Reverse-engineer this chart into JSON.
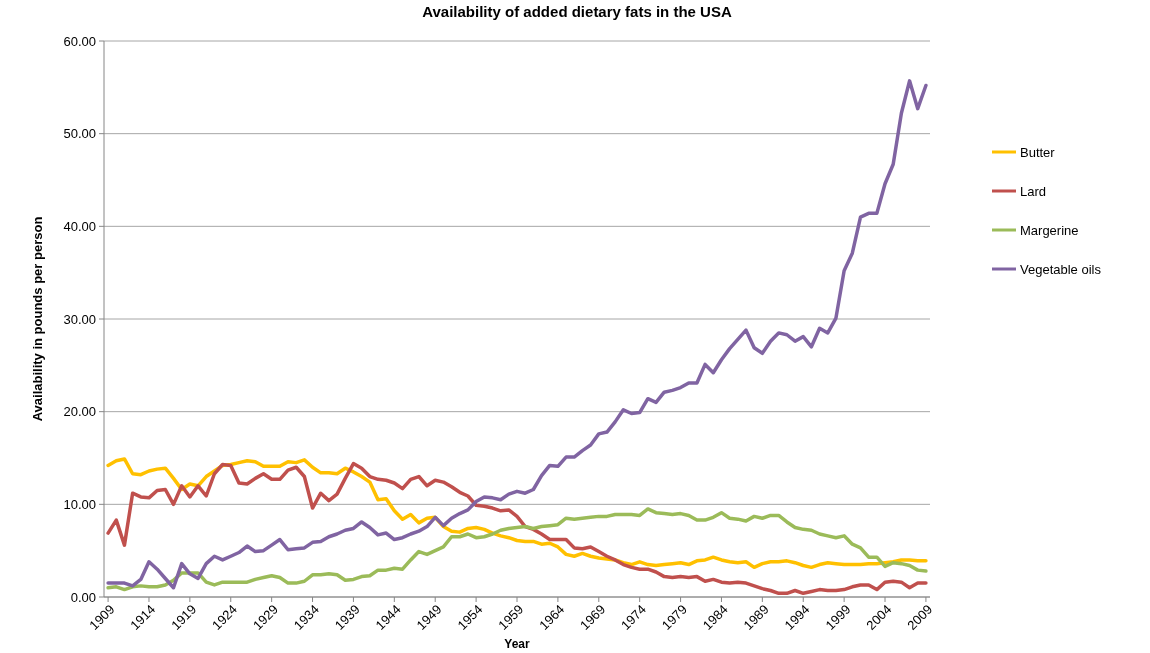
{
  "chart_data": {
    "type": "line",
    "title": "Availability of added dietary fats in the USA",
    "xlabel": "Year",
    "ylabel": "Availability in pounds per person",
    "x": [
      1909,
      1910,
      1911,
      1912,
      1913,
      1914,
      1915,
      1916,
      1917,
      1918,
      1919,
      1920,
      1921,
      1922,
      1923,
      1924,
      1925,
      1926,
      1927,
      1928,
      1929,
      1930,
      1931,
      1932,
      1933,
      1934,
      1935,
      1936,
      1937,
      1938,
      1939,
      1940,
      1941,
      1942,
      1943,
      1944,
      1945,
      1946,
      1947,
      1948,
      1949,
      1950,
      1951,
      1952,
      1953,
      1954,
      1955,
      1956,
      1957,
      1958,
      1959,
      1960,
      1961,
      1962,
      1963,
      1964,
      1965,
      1966,
      1967,
      1968,
      1969,
      1970,
      1971,
      1972,
      1973,
      1974,
      1975,
      1976,
      1977,
      1978,
      1979,
      1980,
      1981,
      1982,
      1983,
      1984,
      1985,
      1986,
      1987,
      1988,
      1989,
      1990,
      1991,
      1992,
      1993,
      1994,
      1995,
      1996,
      1997,
      1998,
      1999,
      2000,
      2001,
      2002,
      2003,
      2004,
      2005,
      2006,
      2007,
      2008,
      2009
    ],
    "xlim": [
      1908.5,
      2009.5
    ],
    "xticks": [
      1909,
      1914,
      1919,
      1924,
      1929,
      1934,
      1939,
      1944,
      1949,
      1954,
      1959,
      1964,
      1969,
      1974,
      1979,
      1984,
      1989,
      1994,
      1999,
      2004,
      2009
    ],
    "ylim": [
      0,
      60
    ],
    "yticks": [
      {
        "value": 0,
        "label": "0.00"
      },
      {
        "value": 10,
        "label": "10.00"
      },
      {
        "value": 20,
        "label": "20.00"
      },
      {
        "value": 30,
        "label": "30.00"
      },
      {
        "value": 40,
        "label": "40.00"
      },
      {
        "value": 50,
        "label": "50.00"
      },
      {
        "value": 60,
        "label": "60.00"
      }
    ],
    "grid": "y",
    "legend": "right",
    "marker": "none",
    "line_style": "solid",
    "series": [
      {
        "name": "Butter",
        "color": "#ffc000",
        "values": [
          14.2,
          14.7,
          14.9,
          13.3,
          13.2,
          13.6,
          13.8,
          13.9,
          12.8,
          11.6,
          12.2,
          12.0,
          13.0,
          13.6,
          14.2,
          14.3,
          14.5,
          14.7,
          14.6,
          14.1,
          14.1,
          14.1,
          14.6,
          14.5,
          14.8,
          14.0,
          13.4,
          13.4,
          13.3,
          13.9,
          13.5,
          13.0,
          12.4,
          10.5,
          10.6,
          9.3,
          8.4,
          8.9,
          8.0,
          8.5,
          8.6,
          7.6,
          7.1,
          7.0,
          7.4,
          7.5,
          7.3,
          6.9,
          6.6,
          6.4,
          6.1,
          6.0,
          6.0,
          5.7,
          5.8,
          5.4,
          4.6,
          4.4,
          4.7,
          4.4,
          4.2,
          4.1,
          4.0,
          3.7,
          3.5,
          3.8,
          3.5,
          3.4,
          3.5,
          3.6,
          3.7,
          3.5,
          3.9,
          4.0,
          4.3,
          4.0,
          3.8,
          3.7,
          3.8,
          3.2,
          3.6,
          3.8,
          3.8,
          3.9,
          3.7,
          3.4,
          3.2,
          3.5,
          3.7,
          3.6,
          3.5,
          3.5,
          3.5,
          3.6,
          3.6,
          3.7,
          3.8,
          4.0,
          4.0,
          3.9,
          3.9
        ]
      },
      {
        "name": "Lard",
        "color": "#c0504d",
        "values": [
          6.9,
          8.3,
          5.6,
          11.2,
          10.8,
          10.7,
          11.5,
          11.6,
          10.0,
          12.0,
          10.8,
          12.0,
          10.9,
          13.3,
          14.3,
          14.2,
          12.3,
          12.2,
          12.8,
          13.3,
          12.7,
          12.7,
          13.7,
          14.0,
          13.0,
          9.6,
          11.2,
          10.4,
          11.1,
          12.8,
          14.4,
          13.9,
          13.0,
          12.7,
          12.6,
          12.3,
          11.7,
          12.7,
          13.0,
          12.0,
          12.6,
          12.4,
          11.9,
          11.3,
          10.9,
          9.9,
          9.8,
          9.6,
          9.3,
          9.4,
          8.7,
          7.6,
          7.3,
          6.8,
          6.2,
          6.2,
          6.2,
          5.3,
          5.2,
          5.4,
          4.9,
          4.4,
          4.0,
          3.5,
          3.2,
          3.0,
          3.0,
          2.7,
          2.2,
          2.1,
          2.2,
          2.1,
          2.2,
          1.7,
          1.9,
          1.6,
          1.5,
          1.6,
          1.5,
          1.2,
          0.9,
          0.7,
          0.4,
          0.4,
          0.7,
          0.4,
          0.6,
          0.8,
          0.7,
          0.7,
          0.8,
          1.1,
          1.3,
          1.3,
          0.8,
          1.6,
          1.7,
          1.6,
          1.0,
          1.5,
          1.5
        ]
      },
      {
        "name": "Margerine",
        "color": "#9bbb59",
        "values": [
          1.0,
          1.1,
          0.8,
          1.1,
          1.2,
          1.1,
          1.1,
          1.3,
          1.8,
          2.6,
          2.6,
          2.6,
          1.6,
          1.3,
          1.6,
          1.6,
          1.6,
          1.6,
          1.9,
          2.1,
          2.3,
          2.1,
          1.5,
          1.5,
          1.7,
          2.4,
          2.4,
          2.5,
          2.4,
          1.8,
          1.9,
          2.2,
          2.3,
          2.9,
          2.9,
          3.1,
          3.0,
          4.0,
          4.9,
          4.6,
          5.0,
          5.4,
          6.5,
          6.5,
          6.8,
          6.4,
          6.5,
          6.8,
          7.2,
          7.4,
          7.5,
          7.6,
          7.4,
          7.6,
          7.7,
          7.8,
          8.5,
          8.4,
          8.5,
          8.6,
          8.7,
          8.7,
          8.9,
          8.9,
          8.9,
          8.8,
          9.5,
          9.1,
          9.0,
          8.9,
          9.0,
          8.8,
          8.3,
          8.3,
          8.6,
          9.1,
          8.5,
          8.4,
          8.2,
          8.7,
          8.5,
          8.8,
          8.8,
          8.1,
          7.5,
          7.3,
          7.2,
          6.8,
          6.6,
          6.4,
          6.6,
          5.7,
          5.3,
          4.3,
          4.3,
          3.3,
          3.7,
          3.6,
          3.4,
          2.9,
          2.8
        ]
      },
      {
        "name": "Vegetable oils",
        "color": "#8064a2",
        "values": [
          1.5,
          1.5,
          1.5,
          1.2,
          1.9,
          3.8,
          3.0,
          2.0,
          1.0,
          3.6,
          2.5,
          2.0,
          3.6,
          4.4,
          4.0,
          4.4,
          4.8,
          5.5,
          4.9,
          5.0,
          5.6,
          6.2,
          5.1,
          5.2,
          5.3,
          5.9,
          6.0,
          6.5,
          6.8,
          7.2,
          7.4,
          8.1,
          7.5,
          6.7,
          6.9,
          6.2,
          6.4,
          6.8,
          7.1,
          7.6,
          8.6,
          7.7,
          8.5,
          9.0,
          9.4,
          10.3,
          10.8,
          10.7,
          10.5,
          11.1,
          11.4,
          11.2,
          11.6,
          13.1,
          14.2,
          14.1,
          15.1,
          15.1,
          15.8,
          16.4,
          17.6,
          17.8,
          18.9,
          20.2,
          19.8,
          19.9,
          21.4,
          21.0,
          22.1,
          22.3,
          22.6,
          23.1,
          23.1,
          25.1,
          24.2,
          25.6,
          26.8,
          27.8,
          28.8,
          26.9,
          26.3,
          27.6,
          28.5,
          28.3,
          27.6,
          28.1,
          27.0,
          29.0,
          28.5,
          30.1,
          35.2,
          37.1,
          41.0,
          41.4,
          41.4,
          44.6,
          46.7,
          52.2,
          55.7,
          52.7,
          55.2
        ]
      }
    ]
  }
}
